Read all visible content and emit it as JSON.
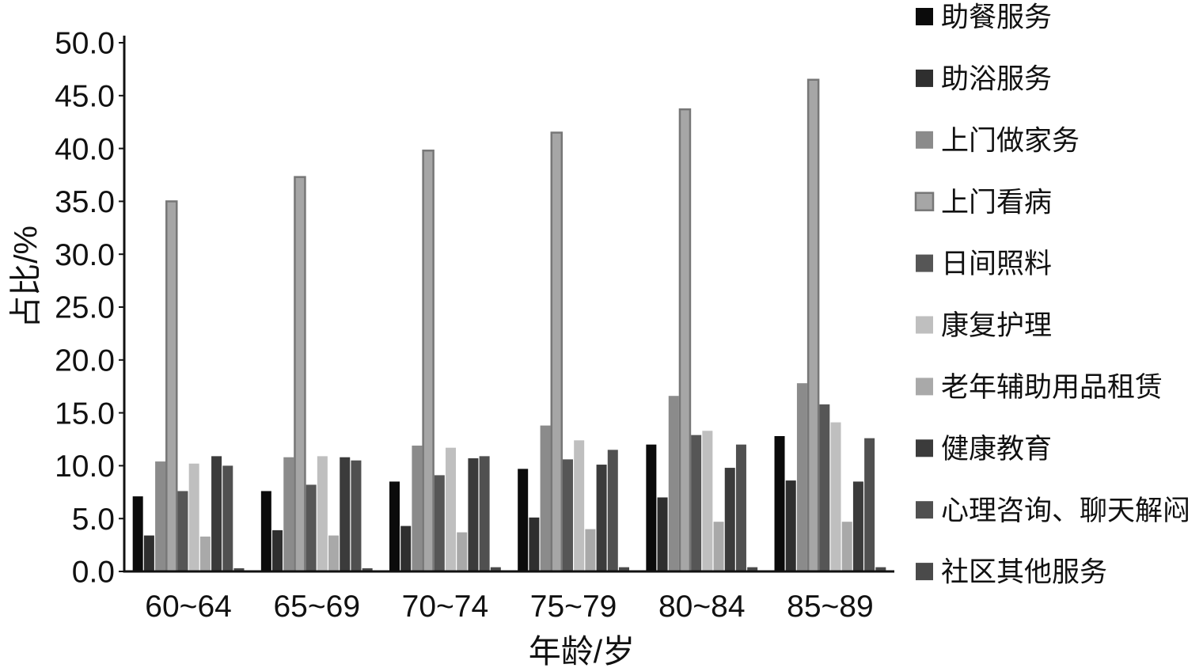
{
  "chart_data": {
    "type": "bar",
    "categories": [
      "60~64",
      "65~69",
      "70~74",
      "75~79",
      "80~84",
      "85~89"
    ],
    "series": [
      {
        "name": "助餐服务",
        "color": "#0b0b0b",
        "values": [
          7.1,
          7.6,
          8.5,
          9.7,
          12.0,
          12.8
        ]
      },
      {
        "name": "助浴服务",
        "color": "#2f2f2f",
        "values": [
          3.4,
          3.9,
          4.3,
          5.1,
          7.0,
          8.6
        ]
      },
      {
        "name": "上门做家务",
        "color": "#8b8b8b",
        "values": [
          10.4,
          10.8,
          11.9,
          13.8,
          16.6,
          17.8
        ]
      },
      {
        "name": "上门看病",
        "color": "#a6a6a6",
        "stroke": "#777777",
        "values": [
          35.0,
          37.3,
          39.8,
          41.5,
          43.7,
          46.5
        ]
      },
      {
        "name": "日间照料",
        "color": "#565656",
        "values": [
          7.6,
          8.2,
          9.1,
          10.6,
          12.9,
          15.8
        ]
      },
      {
        "name": "康复护理",
        "color": "#bfbfbf",
        "values": [
          10.2,
          10.9,
          11.7,
          12.4,
          13.3,
          14.1
        ]
      },
      {
        "name": "老年辅助用品租赁",
        "color": "#a9a9a9",
        "values": [
          3.3,
          3.4,
          3.7,
          4.0,
          4.7,
          4.7
        ]
      },
      {
        "name": "健康教育",
        "color": "#3b3b3b",
        "values": [
          10.9,
          10.8,
          10.7,
          10.1,
          9.8,
          8.5
        ]
      },
      {
        "name": "心理咨询、聊天解闷",
        "color": "#505050",
        "values": [
          10.0,
          10.5,
          10.9,
          11.5,
          12.0,
          12.6
        ]
      },
      {
        "name": "社区其他服务",
        "color": "#4a4a4a",
        "values": [
          0.3,
          0.3,
          0.4,
          0.4,
          0.4,
          0.4
        ]
      }
    ],
    "xlabel": "年龄/岁",
    "ylabel": "占比/%",
    "ylim": [
      0,
      50
    ],
    "yticks": [
      "0.0",
      "5.0",
      "10.0",
      "15.0",
      "20.0",
      "25.0",
      "30.0",
      "35.0",
      "40.0",
      "45.0",
      "50.0"
    ],
    "grid": false,
    "legend": "right"
  }
}
